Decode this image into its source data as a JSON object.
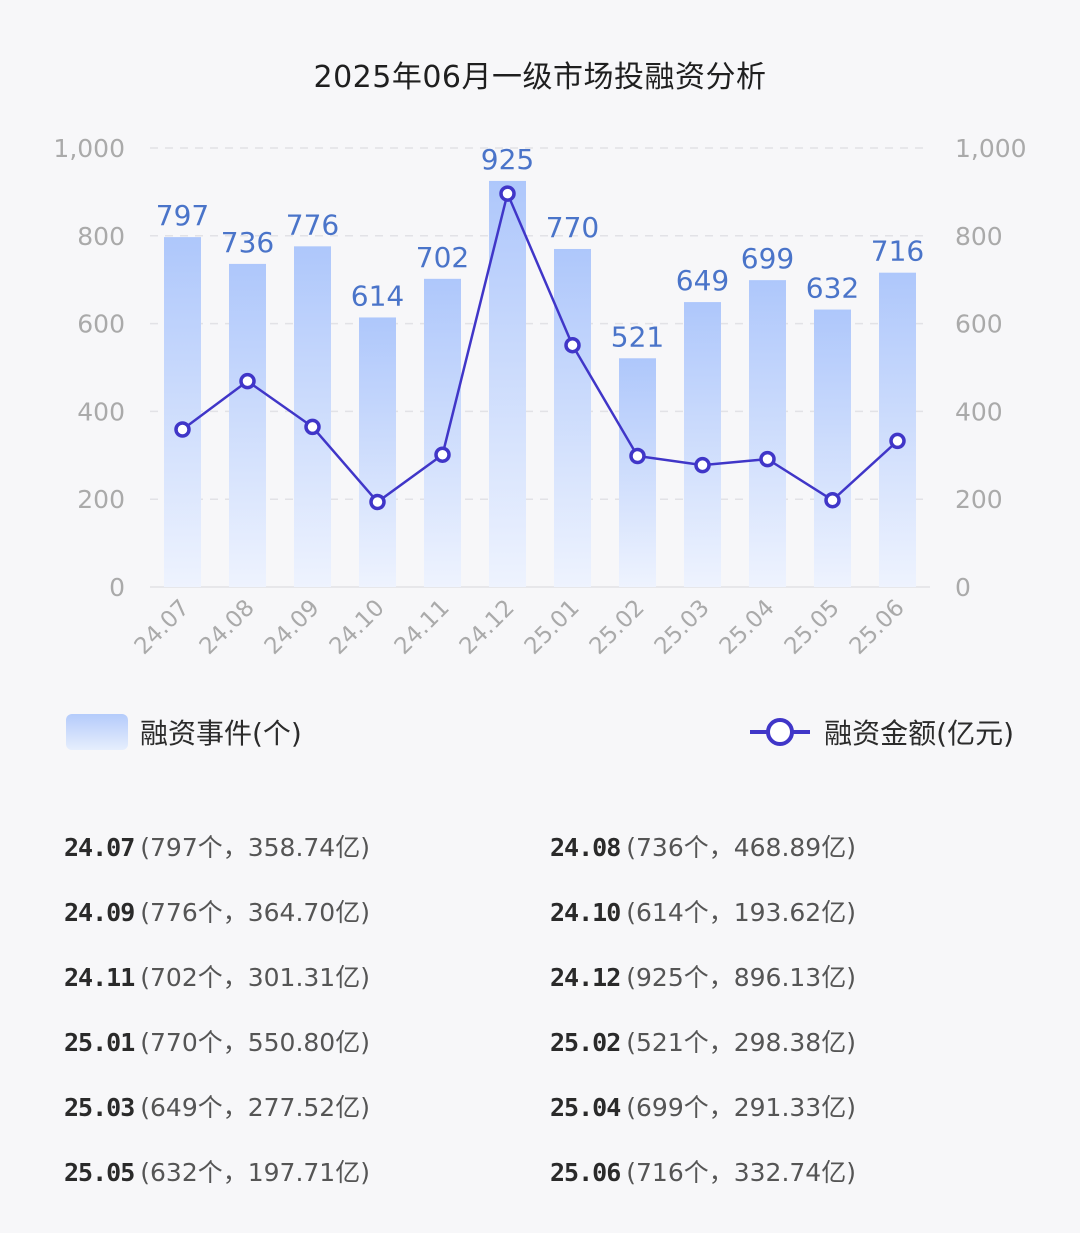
{
  "title": "2025年06月一级市场投融资分析",
  "chart_data": {
    "type": "bar",
    "categories": [
      "24.07",
      "24.08",
      "24.09",
      "24.10",
      "24.11",
      "24.12",
      "25.01",
      "25.02",
      "25.03",
      "25.04",
      "25.05",
      "25.06"
    ],
    "series": [
      {
        "name": "融资事件(个)",
        "kind": "bar",
        "axis": "left",
        "values": [
          797,
          736,
          776,
          614,
          702,
          925,
          770,
          521,
          649,
          699,
          632,
          716
        ]
      },
      {
        "name": "融资金额(亿元)",
        "kind": "line",
        "axis": "right",
        "values": [
          358.74,
          468.89,
          364.7,
          193.62,
          301.31,
          896.13,
          550.8,
          298.38,
          277.52,
          291.33,
          197.71,
          332.74
        ]
      }
    ],
    "ylim": [
      0,
      1000
    ],
    "y2lim": [
      0,
      1000
    ],
    "y_ticks": [
      "0",
      "200",
      "400",
      "600",
      "800",
      "1,000"
    ],
    "y2_ticks": [
      "0",
      "200",
      "400",
      "600",
      "800",
      "1,000"
    ],
    "grid": true,
    "bar_labels": true,
    "legend_placement": "bottom"
  },
  "legend": {
    "bar_label": "融资事件(个)",
    "line_label": "融资金额(亿元)"
  },
  "summary": [
    {
      "label": "24.07",
      "detail": "(797个，358.74亿)"
    },
    {
      "label": "24.08",
      "detail": "(736个，468.89亿)"
    },
    {
      "label": "24.09",
      "detail": "(776个，364.70亿)"
    },
    {
      "label": "24.10",
      "detail": "(614个，193.62亿)"
    },
    {
      "label": "24.11",
      "detail": "(702个，301.31亿)"
    },
    {
      "label": "24.12",
      "detail": "(925个，896.13亿)"
    },
    {
      "label": "25.01",
      "detail": "(770个，550.80亿)"
    },
    {
      "label": "25.02",
      "detail": "(521个，298.38亿)"
    },
    {
      "label": "25.03",
      "detail": "(649个，277.52亿)"
    },
    {
      "label": "25.04",
      "detail": "(699个，291.33亿)"
    },
    {
      "label": "25.05",
      "detail": "(632个，197.71亿)"
    },
    {
      "label": "25.06",
      "detail": "(716个，332.74亿)"
    }
  ],
  "colors": {
    "bar_top": "#aec7fb",
    "bar_bottom": "#eef3fe",
    "bar_label": "#4a74c9",
    "line": "#4036c8",
    "axis_text": "#aaaaaa",
    "grid": "#e2e2e6"
  }
}
